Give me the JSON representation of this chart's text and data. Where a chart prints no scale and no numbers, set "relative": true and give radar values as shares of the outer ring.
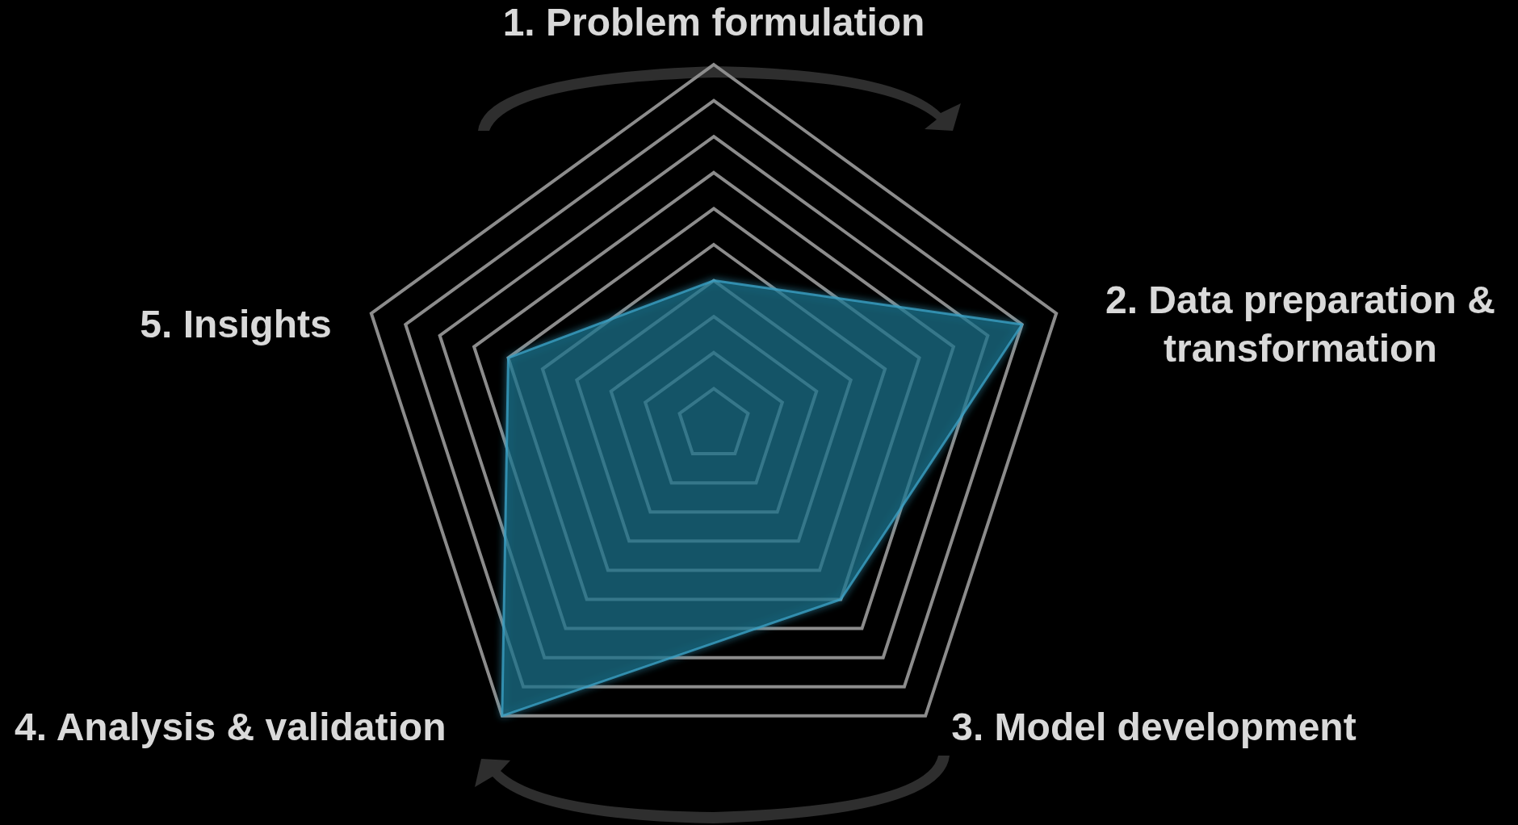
{
  "chart_data": {
    "type": "radar",
    "relative": true,
    "grid": true,
    "categories": [
      "1. Problem formulation",
      "2. Data preparation & transformation",
      "3. Model development",
      "4. Analysis & validation",
      "5. Insights"
    ],
    "series": [
      {
        "color": "#1b6f8a",
        "values": [
          0.4,
          0.9,
          0.6,
          1.0,
          0.6
        ]
      }
    ]
  }
}
